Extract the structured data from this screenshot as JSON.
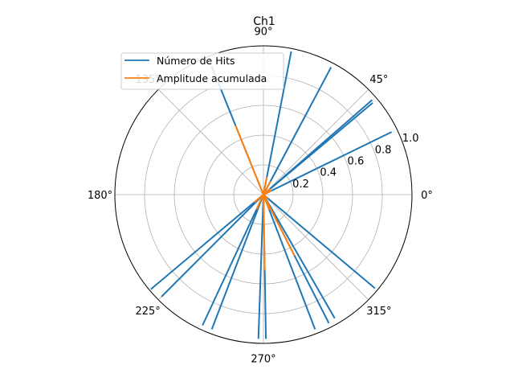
{
  "chart_data": {
    "type": "polar-line",
    "title": "Ch1",
    "angle_tick_labels": [
      "0°",
      "45°",
      "90°",
      "135°",
      "180°",
      "225°",
      "270°",
      "315°"
    ],
    "angle_ticks_deg": [
      0,
      45,
      90,
      135,
      180,
      225,
      270,
      315
    ],
    "radial_tick_labels": [
      "0.2",
      "0.4",
      "0.6",
      "0.8",
      "1.0"
    ],
    "radial_ticks": [
      0.2,
      0.4,
      0.6,
      0.8,
      1.0
    ],
    "rlim": [
      0,
      1.0
    ],
    "radial_label_angle_deg": 22.5,
    "grid": true,
    "legend_position": "upper-left",
    "series": [
      {
        "name": "Número de Hits",
        "color": "#1f77b4",
        "spokes": [
          {
            "theta_deg": 26,
            "r": 0.96
          },
          {
            "theta_deg": 40,
            "r": 0.96
          },
          {
            "theta_deg": 41,
            "r": 0.97
          },
          {
            "theta_deg": 62,
            "r": 0.97
          },
          {
            "theta_deg": 79,
            "r": 0.98
          },
          {
            "theta_deg": 112,
            "r": 0.93
          },
          {
            "theta_deg": 220,
            "r": 0.99
          },
          {
            "theta_deg": 225,
            "r": 0.97
          },
          {
            "theta_deg": 245,
            "r": 0.97
          },
          {
            "theta_deg": 249,
            "r": 0.97
          },
          {
            "theta_deg": 268,
            "r": 0.97
          },
          {
            "theta_deg": 271,
            "r": 0.97
          },
          {
            "theta_deg": 291,
            "r": 0.97
          },
          {
            "theta_deg": 297,
            "r": 0.97
          },
          {
            "theta_deg": 300,
            "r": 0.96
          },
          {
            "theta_deg": 320,
            "r": 0.98
          }
        ]
      },
      {
        "name": "Amplitude acumulada",
        "color": "#ff7f0e",
        "spokes": [
          {
            "theta_deg": 26,
            "r": 0.06
          },
          {
            "theta_deg": 40,
            "r": 0.06
          },
          {
            "theta_deg": 62,
            "r": 0.1
          },
          {
            "theta_deg": 79,
            "r": 0.12
          },
          {
            "theta_deg": 112,
            "r": 0.5
          },
          {
            "theta_deg": 220,
            "r": 0.08
          },
          {
            "theta_deg": 245,
            "r": 0.11
          },
          {
            "theta_deg": 268,
            "r": 0.05
          },
          {
            "theta_deg": 271,
            "r": 0.51
          },
          {
            "theta_deg": 291,
            "r": 0.11
          },
          {
            "theta_deg": 297,
            "r": 0.46
          },
          {
            "theta_deg": 320,
            "r": 0.04
          }
        ]
      }
    ]
  }
}
